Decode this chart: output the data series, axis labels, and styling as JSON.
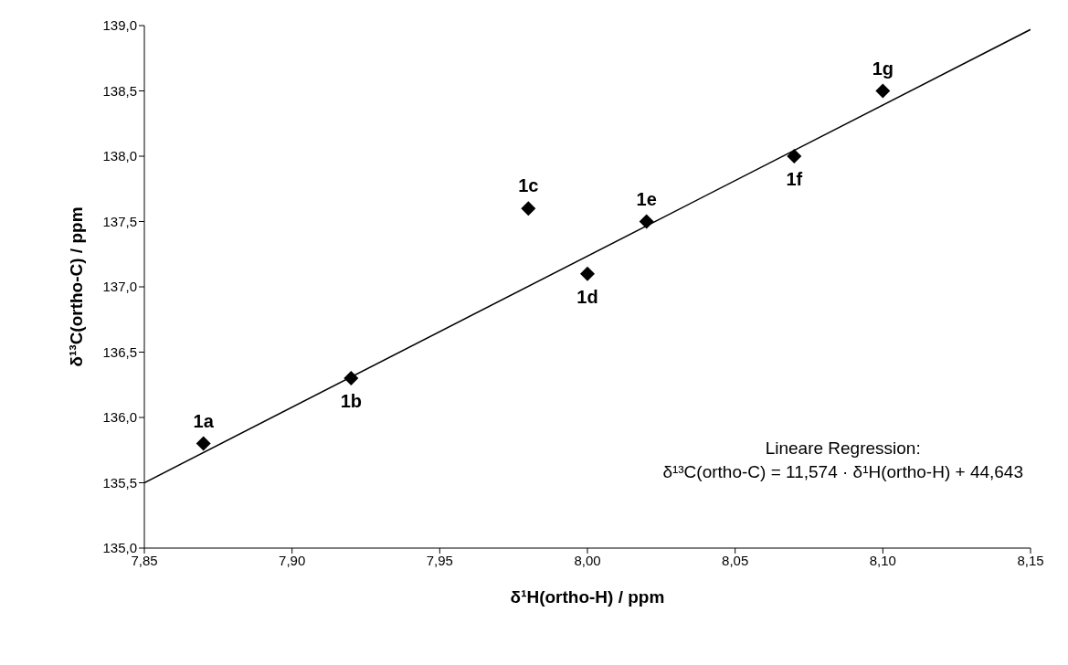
{
  "chart_data": {
    "type": "scatter",
    "xlabel": "δ¹H(ortho-H) / ppm",
    "ylabel": "δ¹³C(ortho-C) / ppm",
    "x": [
      7.87,
      7.92,
      7.98,
      8.0,
      8.02,
      8.07,
      8.1
    ],
    "series": [
      {
        "color": "#000000",
        "marker": "diamond",
        "values": [
          135.8,
          136.3,
          137.6,
          137.1,
          137.5,
          138.0,
          138.5
        ]
      },
      {
        "type": "line",
        "color": "#000000",
        "marker": "none",
        "x": [
          7.85,
          8.15
        ],
        "values": [
          135.5,
          138.97
        ]
      }
    ],
    "grid": false,
    "xlim": [
      7.85,
      8.15
    ],
    "ylim": [
      135,
      139
    ],
    "xticks": [
      {
        "value": 7.85,
        "label": "7,85"
      },
      {
        "value": 7.9,
        "label": "7,90"
      },
      {
        "value": 7.95,
        "label": "7,95"
      },
      {
        "value": 8.0,
        "label": "8,00"
      },
      {
        "value": 8.05,
        "label": "8,05"
      },
      {
        "value": 8.1,
        "label": "8,10"
      },
      {
        "value": 8.15,
        "label": "8,15"
      }
    ],
    "yticks": [
      {
        "value": 135,
        "label": "135,0"
      },
      {
        "value": 135.5,
        "label": "135,5"
      },
      {
        "value": 136,
        "label": "136,0"
      },
      {
        "value": 136.5,
        "label": "136,5"
      },
      {
        "value": 137,
        "label": "137,0"
      },
      {
        "value": 137.5,
        "label": "137,5"
      },
      {
        "value": 138,
        "label": "138,0"
      },
      {
        "value": 138.5,
        "label": "138,5"
      },
      {
        "value": 139,
        "label": "139,0"
      }
    ],
    "annotations": [
      {
        "text": "1a",
        "x": 7.87,
        "y": 135.8
      },
      {
        "text": "1b",
        "x": 7.92,
        "y": 136.3
      },
      {
        "text": "1c",
        "x": 7.98,
        "y": 137.6
      },
      {
        "text": "1d",
        "x": 8.0,
        "y": 137.1
      },
      {
        "text": "1e",
        "x": 8.02,
        "y": 137.5
      },
      {
        "text": "1f",
        "x": 8.07,
        "y": 138.0
      },
      {
        "text": "1g",
        "x": 8.1,
        "y": 138.5
      },
      "Lineare Regression:",
      "δ¹³C(ortho-C) = 11,574 · δ¹H(ortho-H) + 44,643"
    ]
  }
}
